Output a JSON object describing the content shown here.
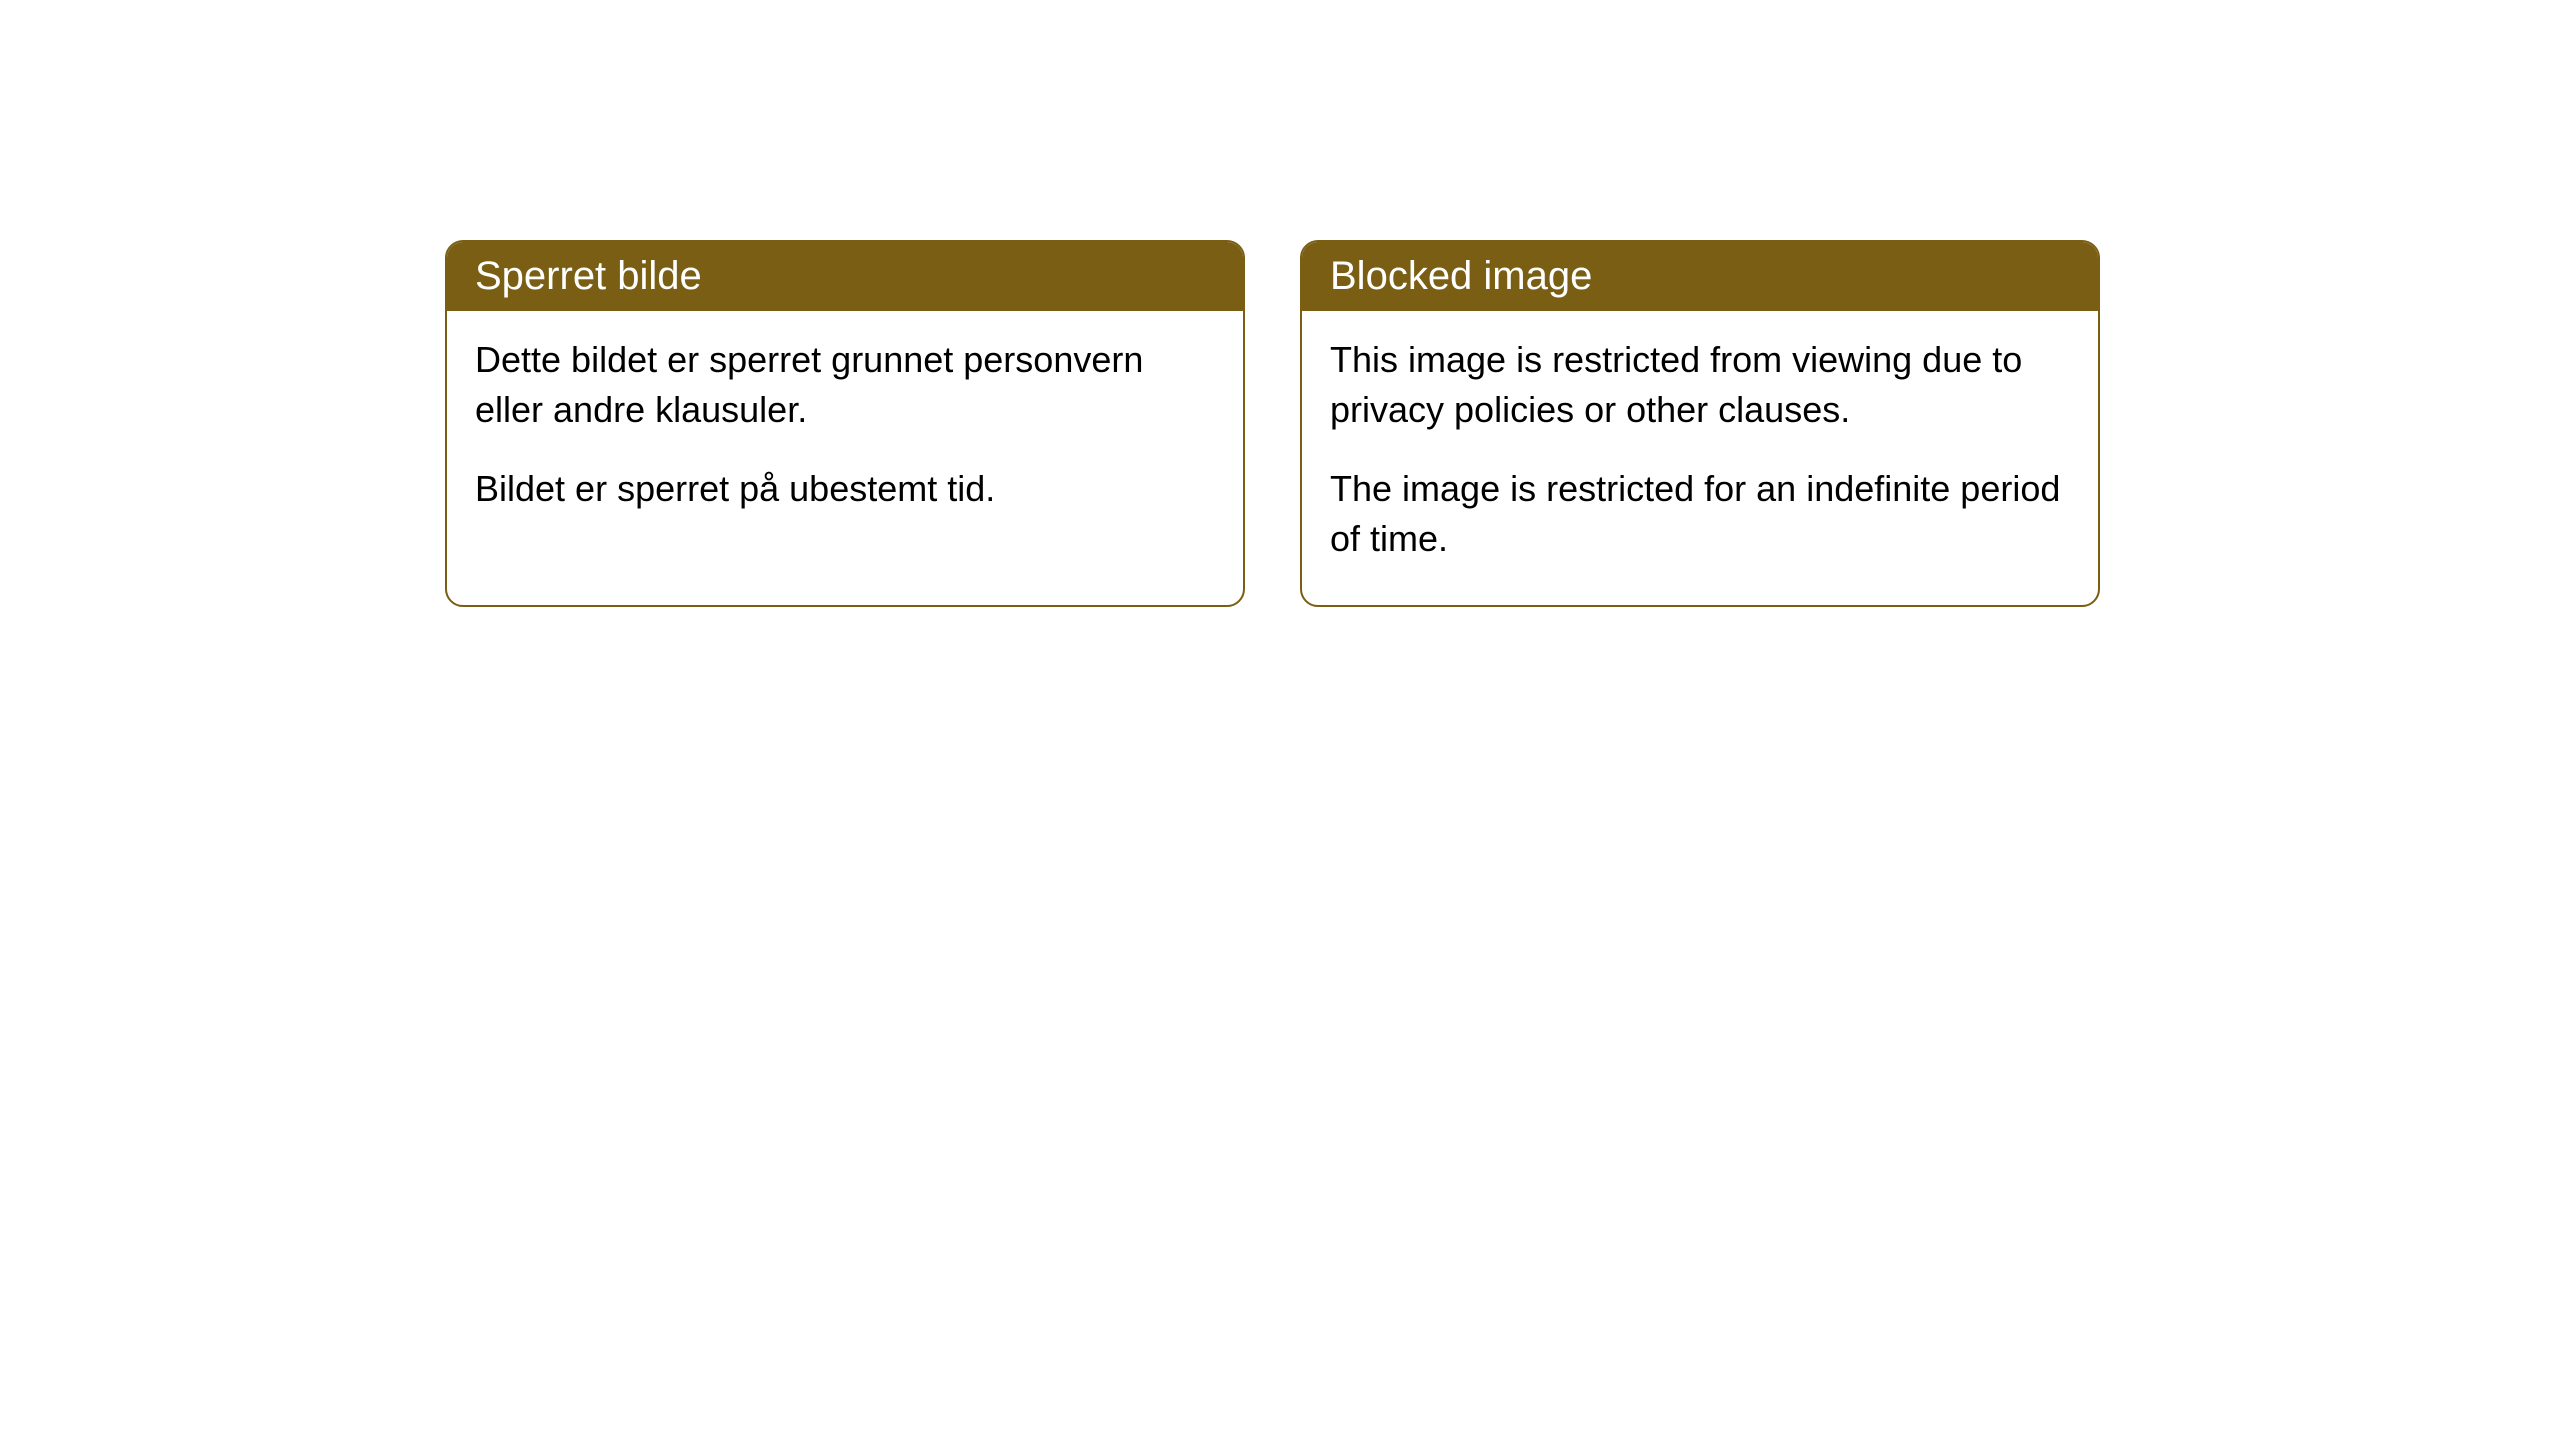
{
  "cards": [
    {
      "title": "Sperret bilde",
      "paragraph1": "Dette bildet er sperret grunnet personvern eller andre klausuler.",
      "paragraph2": "Bildet er sperret på ubestemt tid."
    },
    {
      "title": "Blocked image",
      "paragraph1": "This image is restricted from viewing due to privacy policies or other clauses.",
      "paragraph2": "The image is restricted for an indefinite period of time."
    }
  ],
  "styling": {
    "card_border_color": "#7a5e13",
    "card_header_bg": "#7a5e13",
    "card_header_text_color": "#ffffff",
    "card_body_bg": "#ffffff",
    "card_body_text_color": "#000000",
    "card_border_radius": 18,
    "header_font_size": 40,
    "body_font_size": 36,
    "page_bg": "#ffffff"
  }
}
